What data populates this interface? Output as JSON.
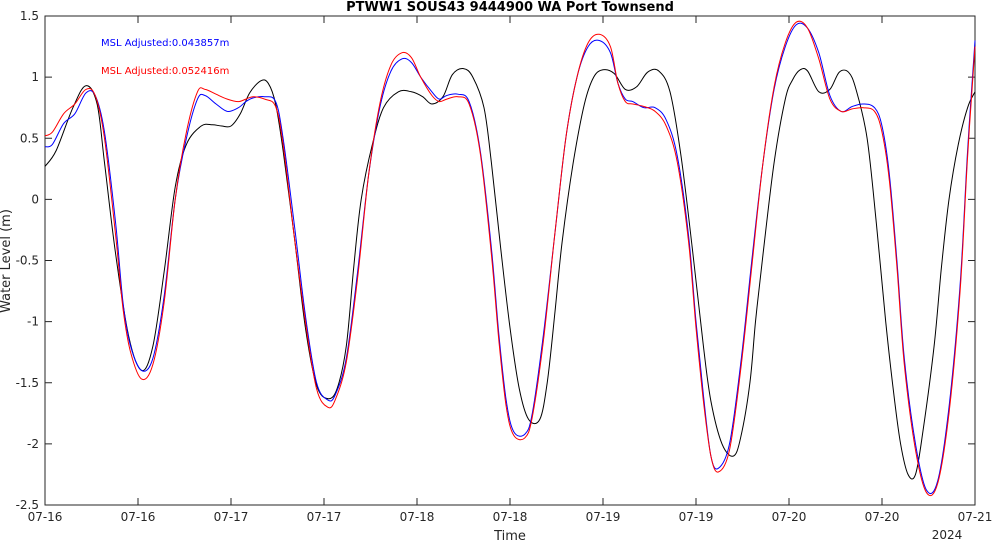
{
  "chart_data": {
    "type": "line",
    "title": "PTWW1 SOUS43 9444900 WA Port Townsend",
    "xlabel": "Time",
    "ylabel": "Water Level (m)",
    "x_range_days": [
      0,
      5
    ],
    "ylim": [
      -2.5,
      1.5
    ],
    "y_ticks": [
      -2.5,
      -2,
      -1.5,
      -1,
      -0.5,
      0,
      0.5,
      1,
      1.5
    ],
    "x_tick_labels": [
      "07-16",
      "07-16",
      "07-17",
      "07-17",
      "07-18",
      "07-18",
      "07-19",
      "07-19",
      "07-20",
      "07-20",
      "07-21"
    ],
    "x_tick_positions_days": [
      0,
      0.5,
      1,
      1.5,
      2,
      2.5,
      3,
      3.5,
      4,
      4.5,
      5
    ],
    "x_year_label": "2024",
    "grid": false,
    "annotations": [
      {
        "text": "MSL Adjusted:0.043857m",
        "color": "#0000ff"
      },
      {
        "text": "MSL Adjusted:0.052416m",
        "color": "#ff0000"
      }
    ],
    "series": [
      {
        "color": "#000000",
        "x": [
          0,
          0.06,
          0.15,
          0.22,
          0.28,
          0.32,
          0.38,
          0.45,
          0.52,
          0.58,
          0.64,
          0.7,
          0.76,
          0.84,
          0.9,
          0.95,
          1.0,
          1.05,
          1.1,
          1.16,
          1.2,
          1.24,
          1.28,
          1.34,
          1.4,
          1.46,
          1.52,
          1.57,
          1.62,
          1.66,
          1.7,
          1.76,
          1.82,
          1.9,
          1.97,
          2.03,
          2.08,
          2.14,
          2.19,
          2.25,
          2.3,
          2.36,
          2.4,
          2.45,
          2.5,
          2.55,
          2.6,
          2.66,
          2.7,
          2.74,
          2.78,
          2.84,
          2.9,
          2.95,
          3.0,
          3.06,
          3.12,
          3.18,
          3.24,
          3.3,
          3.36,
          3.42,
          3.48,
          3.54,
          3.58,
          3.64,
          3.7,
          3.74,
          3.79,
          3.82,
          3.86,
          3.92,
          3.98,
          4.02,
          4.06,
          4.1,
          4.16,
          4.22,
          4.27,
          4.32,
          4.36,
          4.42,
          4.47,
          4.52,
          4.56,
          4.6,
          4.64,
          4.68,
          4.72,
          4.78,
          4.82,
          4.86,
          4.91,
          4.96,
          5.0
        ],
        "y": [
          0.27,
          0.4,
          0.75,
          0.93,
          0.78,
          0.3,
          -0.45,
          -1.12,
          -1.4,
          -1.2,
          -0.6,
          0.1,
          0.45,
          0.6,
          0.61,
          0.6,
          0.6,
          0.7,
          0.87,
          0.97,
          0.95,
          0.78,
          0.4,
          -0.3,
          -1.05,
          -1.52,
          -1.63,
          -1.55,
          -1.2,
          -0.55,
          0.0,
          0.45,
          0.75,
          0.88,
          0.88,
          0.84,
          0.78,
          0.84,
          1.02,
          1.07,
          1.0,
          0.75,
          0.3,
          -0.4,
          -1.05,
          -1.55,
          -1.8,
          -1.8,
          -1.5,
          -0.95,
          -0.35,
          0.3,
          0.78,
          1.0,
          1.06,
          1.03,
          0.9,
          0.92,
          1.04,
          1.05,
          0.88,
          0.35,
          -0.4,
          -1.2,
          -1.65,
          -2.0,
          -2.1,
          -1.95,
          -1.5,
          -1.0,
          -0.45,
          0.3,
          0.82,
          0.98,
          1.06,
          1.05,
          0.88,
          0.9,
          1.04,
          1.04,
          0.9,
          0.5,
          -0.2,
          -1.0,
          -1.55,
          -2.0,
          -2.25,
          -2.25,
          -1.9,
          -1.2,
          -0.55,
          0.0,
          0.45,
          0.75,
          0.88
        ]
      },
      {
        "color": "#0000ff",
        "x": [
          0,
          0.04,
          0.1,
          0.16,
          0.22,
          0.27,
          0.32,
          0.38,
          0.42,
          0.46,
          0.52,
          0.58,
          0.64,
          0.7,
          0.76,
          0.82,
          0.86,
          0.92,
          0.98,
          1.04,
          1.08,
          1.12,
          1.18,
          1.24,
          1.28,
          1.34,
          1.4,
          1.46,
          1.52,
          1.56,
          1.62,
          1.68,
          1.74,
          1.8,
          1.86,
          1.92,
          1.97,
          2.02,
          2.08,
          2.12,
          2.16,
          2.22,
          2.28,
          2.34,
          2.4,
          2.44,
          2.48,
          2.52,
          2.58,
          2.62,
          2.68,
          2.74,
          2.8,
          2.86,
          2.92,
          2.98,
          3.04,
          3.08,
          3.12,
          3.16,
          3.22,
          3.28,
          3.34,
          3.4,
          3.46,
          3.5,
          3.54,
          3.58,
          3.62,
          3.68,
          3.74,
          3.8,
          3.86,
          3.92,
          3.98,
          4.04,
          4.1,
          4.16,
          4.22,
          4.28,
          4.34,
          4.4,
          4.46,
          4.5,
          4.54,
          4.58,
          4.62,
          4.68,
          4.74,
          4.8,
          4.86,
          4.92,
          4.96,
          5.0
        ],
        "y": [
          0.43,
          0.45,
          0.62,
          0.7,
          0.87,
          0.85,
          0.55,
          -0.2,
          -0.85,
          -1.2,
          -1.4,
          -1.3,
          -0.8,
          0.0,
          0.5,
          0.82,
          0.85,
          0.78,
          0.72,
          0.75,
          0.8,
          0.83,
          0.84,
          0.8,
          0.5,
          -0.2,
          -0.95,
          -1.5,
          -1.64,
          -1.6,
          -1.3,
          -0.6,
          0.2,
          0.75,
          1.05,
          1.15,
          1.12,
          1.0,
          0.88,
          0.82,
          0.85,
          0.86,
          0.8,
          0.4,
          -0.4,
          -1.1,
          -1.65,
          -1.9,
          -1.92,
          -1.75,
          -1.1,
          -0.3,
          0.5,
          1.0,
          1.25,
          1.3,
          1.2,
          0.95,
          0.82,
          0.8,
          0.75,
          0.75,
          0.65,
          0.35,
          -0.3,
          -1.0,
          -1.6,
          -2.1,
          -2.2,
          -2.0,
          -1.35,
          -0.5,
          0.3,
          0.9,
          1.25,
          1.43,
          1.4,
          1.2,
          0.85,
          0.72,
          0.76,
          0.78,
          0.75,
          0.6,
          0.2,
          -0.5,
          -1.3,
          -2.0,
          -2.38,
          -2.3,
          -1.7,
          -0.7,
          0.4,
          1.3
        ]
      },
      {
        "color": "#ff0000",
        "x": [
          0,
          0.04,
          0.1,
          0.16,
          0.22,
          0.27,
          0.32,
          0.38,
          0.42,
          0.46,
          0.52,
          0.58,
          0.64,
          0.7,
          0.76,
          0.82,
          0.86,
          0.92,
          0.98,
          1.04,
          1.08,
          1.12,
          1.18,
          1.24,
          1.28,
          1.34,
          1.4,
          1.46,
          1.52,
          1.56,
          1.62,
          1.68,
          1.74,
          1.8,
          1.86,
          1.92,
          1.97,
          2.02,
          2.08,
          2.12,
          2.16,
          2.22,
          2.28,
          2.34,
          2.4,
          2.44,
          2.48,
          2.52,
          2.58,
          2.62,
          2.68,
          2.74,
          2.8,
          2.86,
          2.92,
          2.98,
          3.04,
          3.08,
          3.12,
          3.16,
          3.22,
          3.28,
          3.34,
          3.4,
          3.46,
          3.5,
          3.54,
          3.58,
          3.62,
          3.68,
          3.74,
          3.8,
          3.86,
          3.92,
          3.98,
          4.04,
          4.1,
          4.16,
          4.22,
          4.28,
          4.34,
          4.4,
          4.46,
          4.5,
          4.54,
          4.58,
          4.62,
          4.68,
          4.74,
          4.8,
          4.86,
          4.92,
          4.96,
          5.0
        ],
        "y": [
          0.52,
          0.55,
          0.7,
          0.78,
          0.9,
          0.85,
          0.5,
          -0.3,
          -0.9,
          -1.25,
          -1.47,
          -1.35,
          -0.85,
          0.0,
          0.55,
          0.88,
          0.9,
          0.86,
          0.82,
          0.8,
          0.82,
          0.84,
          0.82,
          0.76,
          0.45,
          -0.3,
          -1.0,
          -1.55,
          -1.7,
          -1.64,
          -1.33,
          -0.65,
          0.2,
          0.78,
          1.1,
          1.2,
          1.16,
          1.0,
          0.85,
          0.8,
          0.82,
          0.84,
          0.78,
          0.38,
          -0.45,
          -1.15,
          -1.7,
          -1.93,
          -1.95,
          -1.78,
          -1.15,
          -0.3,
          0.5,
          1.0,
          1.28,
          1.35,
          1.25,
          0.95,
          0.8,
          0.78,
          0.76,
          0.72,
          0.6,
          0.3,
          -0.35,
          -1.05,
          -1.65,
          -2.1,
          -2.23,
          -2.05,
          -1.4,
          -0.55,
          0.3,
          0.92,
          1.28,
          1.45,
          1.4,
          1.15,
          0.82,
          0.72,
          0.74,
          0.75,
          0.72,
          0.55,
          0.15,
          -0.55,
          -1.35,
          -2.05,
          -2.4,
          -2.32,
          -1.75,
          -0.75,
          0.35,
          1.25
        ]
      }
    ]
  }
}
